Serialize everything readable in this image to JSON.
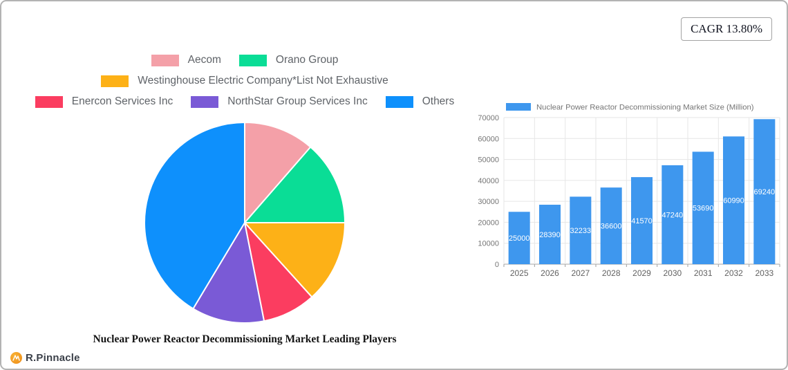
{
  "badge": {
    "label": "CAGR 13.80%"
  },
  "logo": {
    "brand": "R.Pinnacle",
    "icon": "pinnacle-circle-icon",
    "icon_color": "#f59b1e"
  },
  "chart_data": [
    {
      "type": "pie",
      "title": "Nuclear Power Reactor Decommissioning Market Leading Players",
      "labels": [
        "Aecom",
        "Orano Group",
        "Westinghouse Electric Company*List Not Exhaustive",
        "Enercon Services Inc",
        "NorthStar Group Services Inc",
        "Others"
      ],
      "values": [
        11.4,
        13.6,
        13.3,
        8.6,
        11.7,
        41.4
      ],
      "colors": [
        "#f4a0a8",
        "#0add96",
        "#fdb117",
        "#fb3d60",
        "#7a5ad6",
        "#0e90fc"
      ],
      "legend_position": "top",
      "legend_rows": [
        [
          0,
          1
        ],
        [
          2
        ],
        [
          3,
          4,
          5
        ]
      ],
      "start_angle_deg": -90,
      "direction": "clockwise",
      "slice_border_color": "#ffffff"
    },
    {
      "type": "bar",
      "categories": [
        "2025",
        "2026",
        "2027",
        "2028",
        "2029",
        "2030",
        "2031",
        "2032",
        "2033"
      ],
      "series": [
        {
          "name": "Nuclear Power Reactor Decommissioning Market Size (Million)",
          "values": [
            25000,
            28390,
            32233,
            36600,
            41570,
            47240,
            53690,
            60990,
            69240
          ],
          "color": "#3e97ee"
        }
      ],
      "ylim": [
        0,
        70000
      ],
      "yticks": [
        0,
        10000,
        20000,
        30000,
        40000,
        50000,
        60000,
        70000
      ],
      "grid": true,
      "legend_position": "top",
      "value_labels": "inside-center",
      "value_label_color": "#ffffff",
      "axis_label_color": "#757575",
      "grid_color": "#e6e6e6"
    }
  ]
}
